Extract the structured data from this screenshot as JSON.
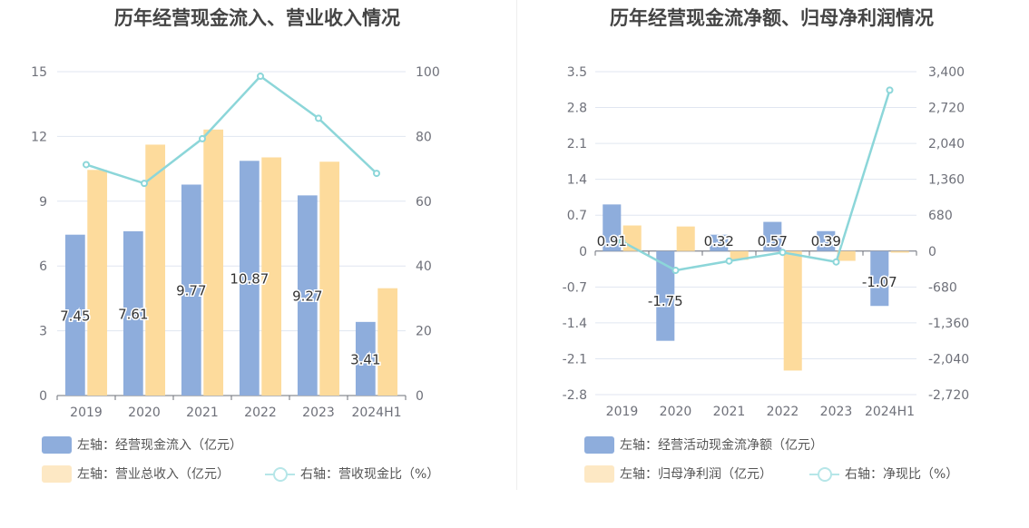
{
  "charts": [
    {
      "title": "历年经营现金流入、营业收入情况",
      "chart_data": {
        "type": "bar",
        "title": "历年经营现金流入、营业收入情况",
        "categories": [
          "2019",
          "2020",
          "2021",
          "2022",
          "2023",
          "2024H1"
        ],
        "series": [
          {
            "name": "左轴：经营现金流入（亿元）",
            "type": "bar",
            "axis": "left",
            "color": "#8eaddc",
            "values": [
              7.45,
              7.61,
              9.77,
              10.87,
              9.27,
              3.41
            ],
            "labels": [
              "7.45",
              "7.61",
              "9.77",
              "10.87",
              "9.27",
              "3.41"
            ]
          },
          {
            "name": "左轴：营业总收入（亿元）",
            "type": "bar",
            "axis": "left",
            "color": "#fddb9c",
            "values": [
              10.45,
              11.62,
              12.32,
              11.03,
              10.83,
              4.97
            ]
          },
          {
            "name": "右轴：营收现金比（%）",
            "type": "line",
            "axis": "right",
            "color": "#8cd6d9",
            "values": [
              71.3,
              65.5,
              79.3,
              98.6,
              85.6,
              68.6
            ]
          }
        ],
        "left_axis": {
          "min": 0,
          "max": 15,
          "ticks": [
            "0",
            "3",
            "6",
            "9",
            "12",
            "15"
          ]
        },
        "right_axis": {
          "min": 0,
          "max": 100,
          "ticks": [
            "0",
            "20",
            "40",
            "60",
            "80",
            "100"
          ]
        },
        "grid": true,
        "legend_position": "bottom"
      }
    },
    {
      "title": "历年经营现金流净额、归母净利润情况",
      "chart_data": {
        "type": "bar",
        "title": "历年经营现金流净额、归母净利润情况",
        "categories": [
          "2019",
          "2020",
          "2021",
          "2022",
          "2023",
          "2024H1"
        ],
        "series": [
          {
            "name": "左轴：经营活动现金流净额（亿元）",
            "type": "bar",
            "axis": "left",
            "color": "#8eaddc",
            "values": [
              0.91,
              -1.75,
              0.32,
              0.57,
              0.39,
              -1.07
            ],
            "labels": [
              "0.91",
              "-1.75",
              "0.32",
              "0.57",
              "0.39",
              "-1.07"
            ]
          },
          {
            "name": "左轴：归母净利润（亿元）",
            "type": "bar",
            "axis": "left",
            "color": "#fddb9c",
            "values": [
              0.5,
              0.48,
              -0.17,
              -2.33,
              -0.19,
              -0.03
            ]
          },
          {
            "name": "右轴：净现比（%）",
            "type": "line",
            "axis": "right",
            "color": "#8cd6d9",
            "values": [
              182,
              -365,
              -188,
              -25,
              -205,
              3050
            ]
          }
        ],
        "left_axis": {
          "min": -2.8,
          "max": 3.5,
          "ticks": [
            "-2.8",
            "-2.1",
            "-1.4",
            "-0.7",
            "0",
            "0.7",
            "1.4",
            "2.1",
            "2.8",
            "3.5"
          ]
        },
        "right_axis": {
          "min": -2720,
          "max": 3400,
          "ticks": [
            "-2,720",
            "-2,040",
            "-1,360",
            "-680",
            "0",
            "680",
            "1,360",
            "2,040",
            "2,720",
            "3,400"
          ]
        },
        "grid": true,
        "legend_position": "bottom"
      }
    }
  ]
}
